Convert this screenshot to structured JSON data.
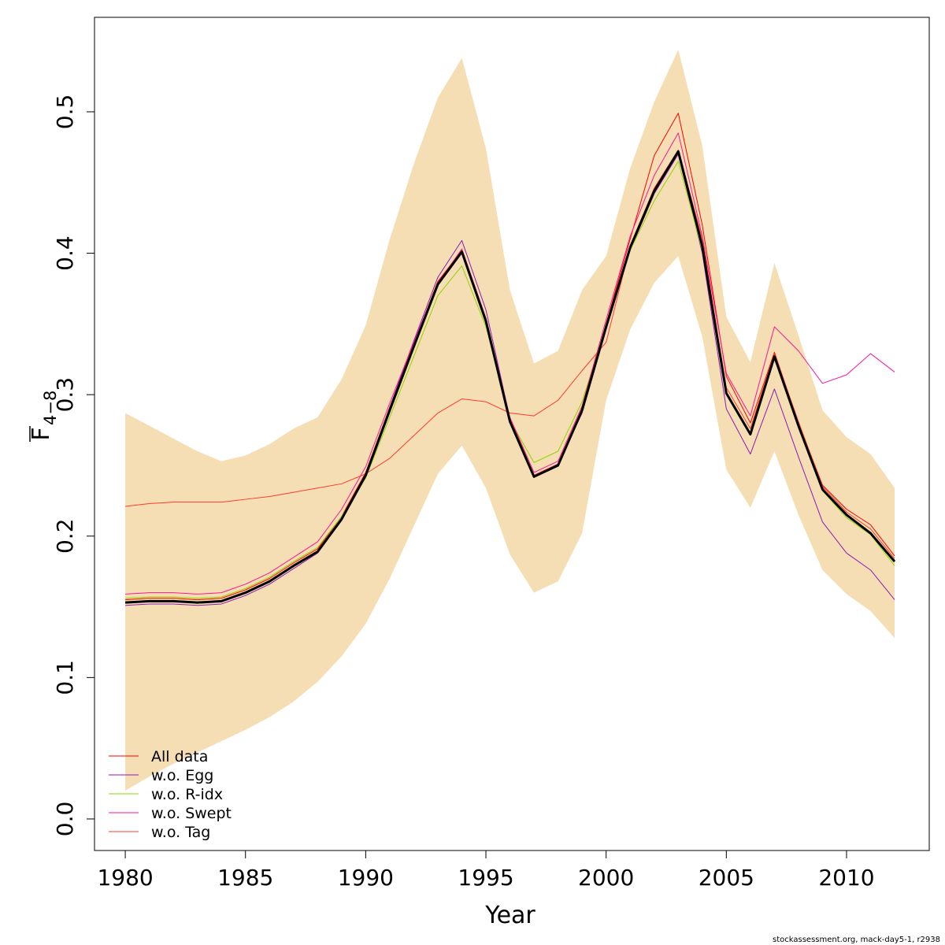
{
  "chart_data": {
    "type": "line",
    "xlabel": "Year",
    "ylabel": "F",
    "ylabel_subscript": "4−8",
    "footer": "stockassessment.org, mack-day5-1, r2938",
    "x": [
      1980,
      1981,
      1982,
      1983,
      1984,
      1985,
      1986,
      1987,
      1988,
      1989,
      1990,
      1991,
      1992,
      1993,
      1994,
      1995,
      1996,
      1997,
      1998,
      1999,
      2000,
      2001,
      2002,
      2003,
      2004,
      2005,
      2006,
      2007,
      2008,
      2009,
      2010,
      2011,
      2012
    ],
    "xlim": [
      1978.72,
      2013.44
    ],
    "xticks": [
      1980,
      1985,
      1990,
      1995,
      2000,
      2005,
      2010
    ],
    "ylim": [
      -0.0223,
      0.5668
    ],
    "yticks": [
      {
        "value": 0,
        "label": "0.0"
      },
      0.1,
      0.2,
      0.3,
      0.4,
      0.5
    ],
    "band": {
      "color": "#f5deb3",
      "upper": [
        0.287,
        0.278,
        0.269,
        0.26,
        0.253,
        0.257,
        0.265,
        0.276,
        0.284,
        0.311,
        0.349,
        0.41,
        0.463,
        0.51,
        0.538,
        0.474,
        0.374,
        0.322,
        0.331,
        0.374,
        0.398,
        0.46,
        0.507,
        0.544,
        0.476,
        0.355,
        0.323,
        0.393,
        0.342,
        0.289,
        0.27,
        0.258,
        0.234
      ],
      "lower": [
        0.02,
        0.03,
        0.039,
        0.047,
        0.055,
        0.063,
        0.072,
        0.083,
        0.097,
        0.115,
        0.138,
        0.17,
        0.207,
        0.244,
        0.264,
        0.234,
        0.187,
        0.16,
        0.168,
        0.202,
        0.296,
        0.346,
        0.379,
        0.398,
        0.341,
        0.247,
        0.22,
        0.26,
        0.215,
        0.176,
        0.159,
        0.147,
        0.128
      ]
    },
    "series": [
      {
        "name": "All data",
        "color": "#ff0000",
        "values": [
          0.155,
          0.156,
          0.156,
          0.155,
          0.156,
          0.162,
          0.17,
          0.181,
          0.191,
          0.214,
          0.245,
          0.291,
          0.336,
          0.38,
          0.402,
          0.354,
          0.283,
          0.243,
          0.251,
          0.29,
          0.35,
          0.41,
          0.469,
          0.499,
          0.42,
          0.313,
          0.28,
          0.33,
          0.28,
          0.236,
          0.219,
          0.208,
          0.186
        ]
      },
      {
        "name": "w.o. Egg",
        "color": "#8b1ab8",
        "values": [
          0.151,
          0.152,
          0.152,
          0.151,
          0.152,
          0.158,
          0.166,
          0.177,
          0.188,
          0.211,
          0.243,
          0.291,
          0.338,
          0.383,
          0.409,
          0.36,
          0.283,
          0.242,
          0.251,
          0.287,
          0.346,
          0.402,
          0.442,
          0.47,
          0.4,
          0.29,
          0.258,
          0.304,
          0.256,
          0.21,
          0.188,
          0.176,
          0.155
        ]
      },
      {
        "name": "w.o. R-idx",
        "color": "#8fd400",
        "values": [
          0.156,
          0.157,
          0.157,
          0.156,
          0.157,
          0.163,
          0.171,
          0.182,
          0.192,
          0.214,
          0.241,
          0.284,
          0.327,
          0.37,
          0.391,
          0.348,
          0.282,
          0.252,
          0.26,
          0.295,
          0.349,
          0.402,
          0.437,
          0.465,
          0.402,
          0.3,
          0.273,
          0.328,
          0.28,
          0.232,
          0.213,
          0.201,
          0.179
        ]
      },
      {
        "name": "w.o. Swept",
        "color": "#ff1493",
        "values": [
          0.159,
          0.16,
          0.16,
          0.159,
          0.16,
          0.166,
          0.174,
          0.185,
          0.196,
          0.219,
          0.249,
          0.294,
          0.337,
          0.379,
          0.403,
          0.354,
          0.284,
          0.245,
          0.253,
          0.292,
          0.353,
          0.412,
          0.455,
          0.485,
          0.412,
          0.315,
          0.285,
          0.348,
          0.331,
          0.308,
          0.314,
          0.329,
          0.316
        ]
      },
      {
        "name": "w.o. Tag",
        "color": "#ff3a30",
        "values": [
          0.221,
          0.223,
          0.224,
          0.224,
          0.224,
          0.226,
          0.228,
          0.231,
          0.234,
          0.237,
          0.244,
          0.255,
          0.271,
          0.287,
          0.297,
          0.295,
          0.287,
          0.285,
          0.296,
          0.317,
          0.337,
          0.405,
          0.446,
          0.473,
          0.41,
          0.305,
          0.276,
          0.329,
          0.281,
          0.235,
          0.217,
          0.205,
          0.184
        ]
      },
      {
        "color": "#000000",
        "values": [
          0.153,
          0.154,
          0.154,
          0.153,
          0.154,
          0.16,
          0.168,
          0.179,
          0.189,
          0.212,
          0.243,
          0.289,
          0.334,
          0.378,
          0.401,
          0.352,
          0.281,
          0.242,
          0.25,
          0.289,
          0.348,
          0.404,
          0.444,
          0.472,
          0.405,
          0.301,
          0.272,
          0.327,
          0.278,
          0.233,
          0.215,
          0.202,
          0.182
        ]
      }
    ]
  }
}
